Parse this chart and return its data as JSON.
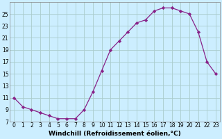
{
  "x": [
    0,
    1,
    2,
    3,
    4,
    5,
    6,
    7,
    8,
    9,
    10,
    11,
    12,
    13,
    14,
    15,
    16,
    17,
    18,
    19,
    20,
    21,
    22,
    23
  ],
  "y": [
    11,
    9.5,
    9,
    8.5,
    8,
    7.5,
    7.5,
    7.5,
    9,
    12,
    15.5,
    19,
    20.5,
    22,
    23.5,
    24,
    25.5,
    26,
    26,
    25.5,
    25,
    22,
    17,
    15
  ],
  "line_color": "#882288",
  "marker": "D",
  "marker_size": 2.2,
  "bg_color": "#cceeff",
  "grid_color": "#aacccc",
  "xlabel": "Windchill (Refroidissement éolien,°C)",
  "xlim": [
    -0.5,
    23.5
  ],
  "ylim": [
    7,
    27
  ],
  "yticks": [
    7,
    9,
    11,
    13,
    15,
    17,
    19,
    21,
    23,
    25
  ],
  "xticks": [
    0,
    1,
    2,
    3,
    4,
    5,
    6,
    7,
    8,
    9,
    10,
    11,
    12,
    13,
    14,
    15,
    16,
    17,
    18,
    19,
    20,
    21,
    22,
    23
  ],
  "tick_fontsize": 5.5,
  "xlabel_fontsize": 6.5,
  "line_width": 0.9
}
